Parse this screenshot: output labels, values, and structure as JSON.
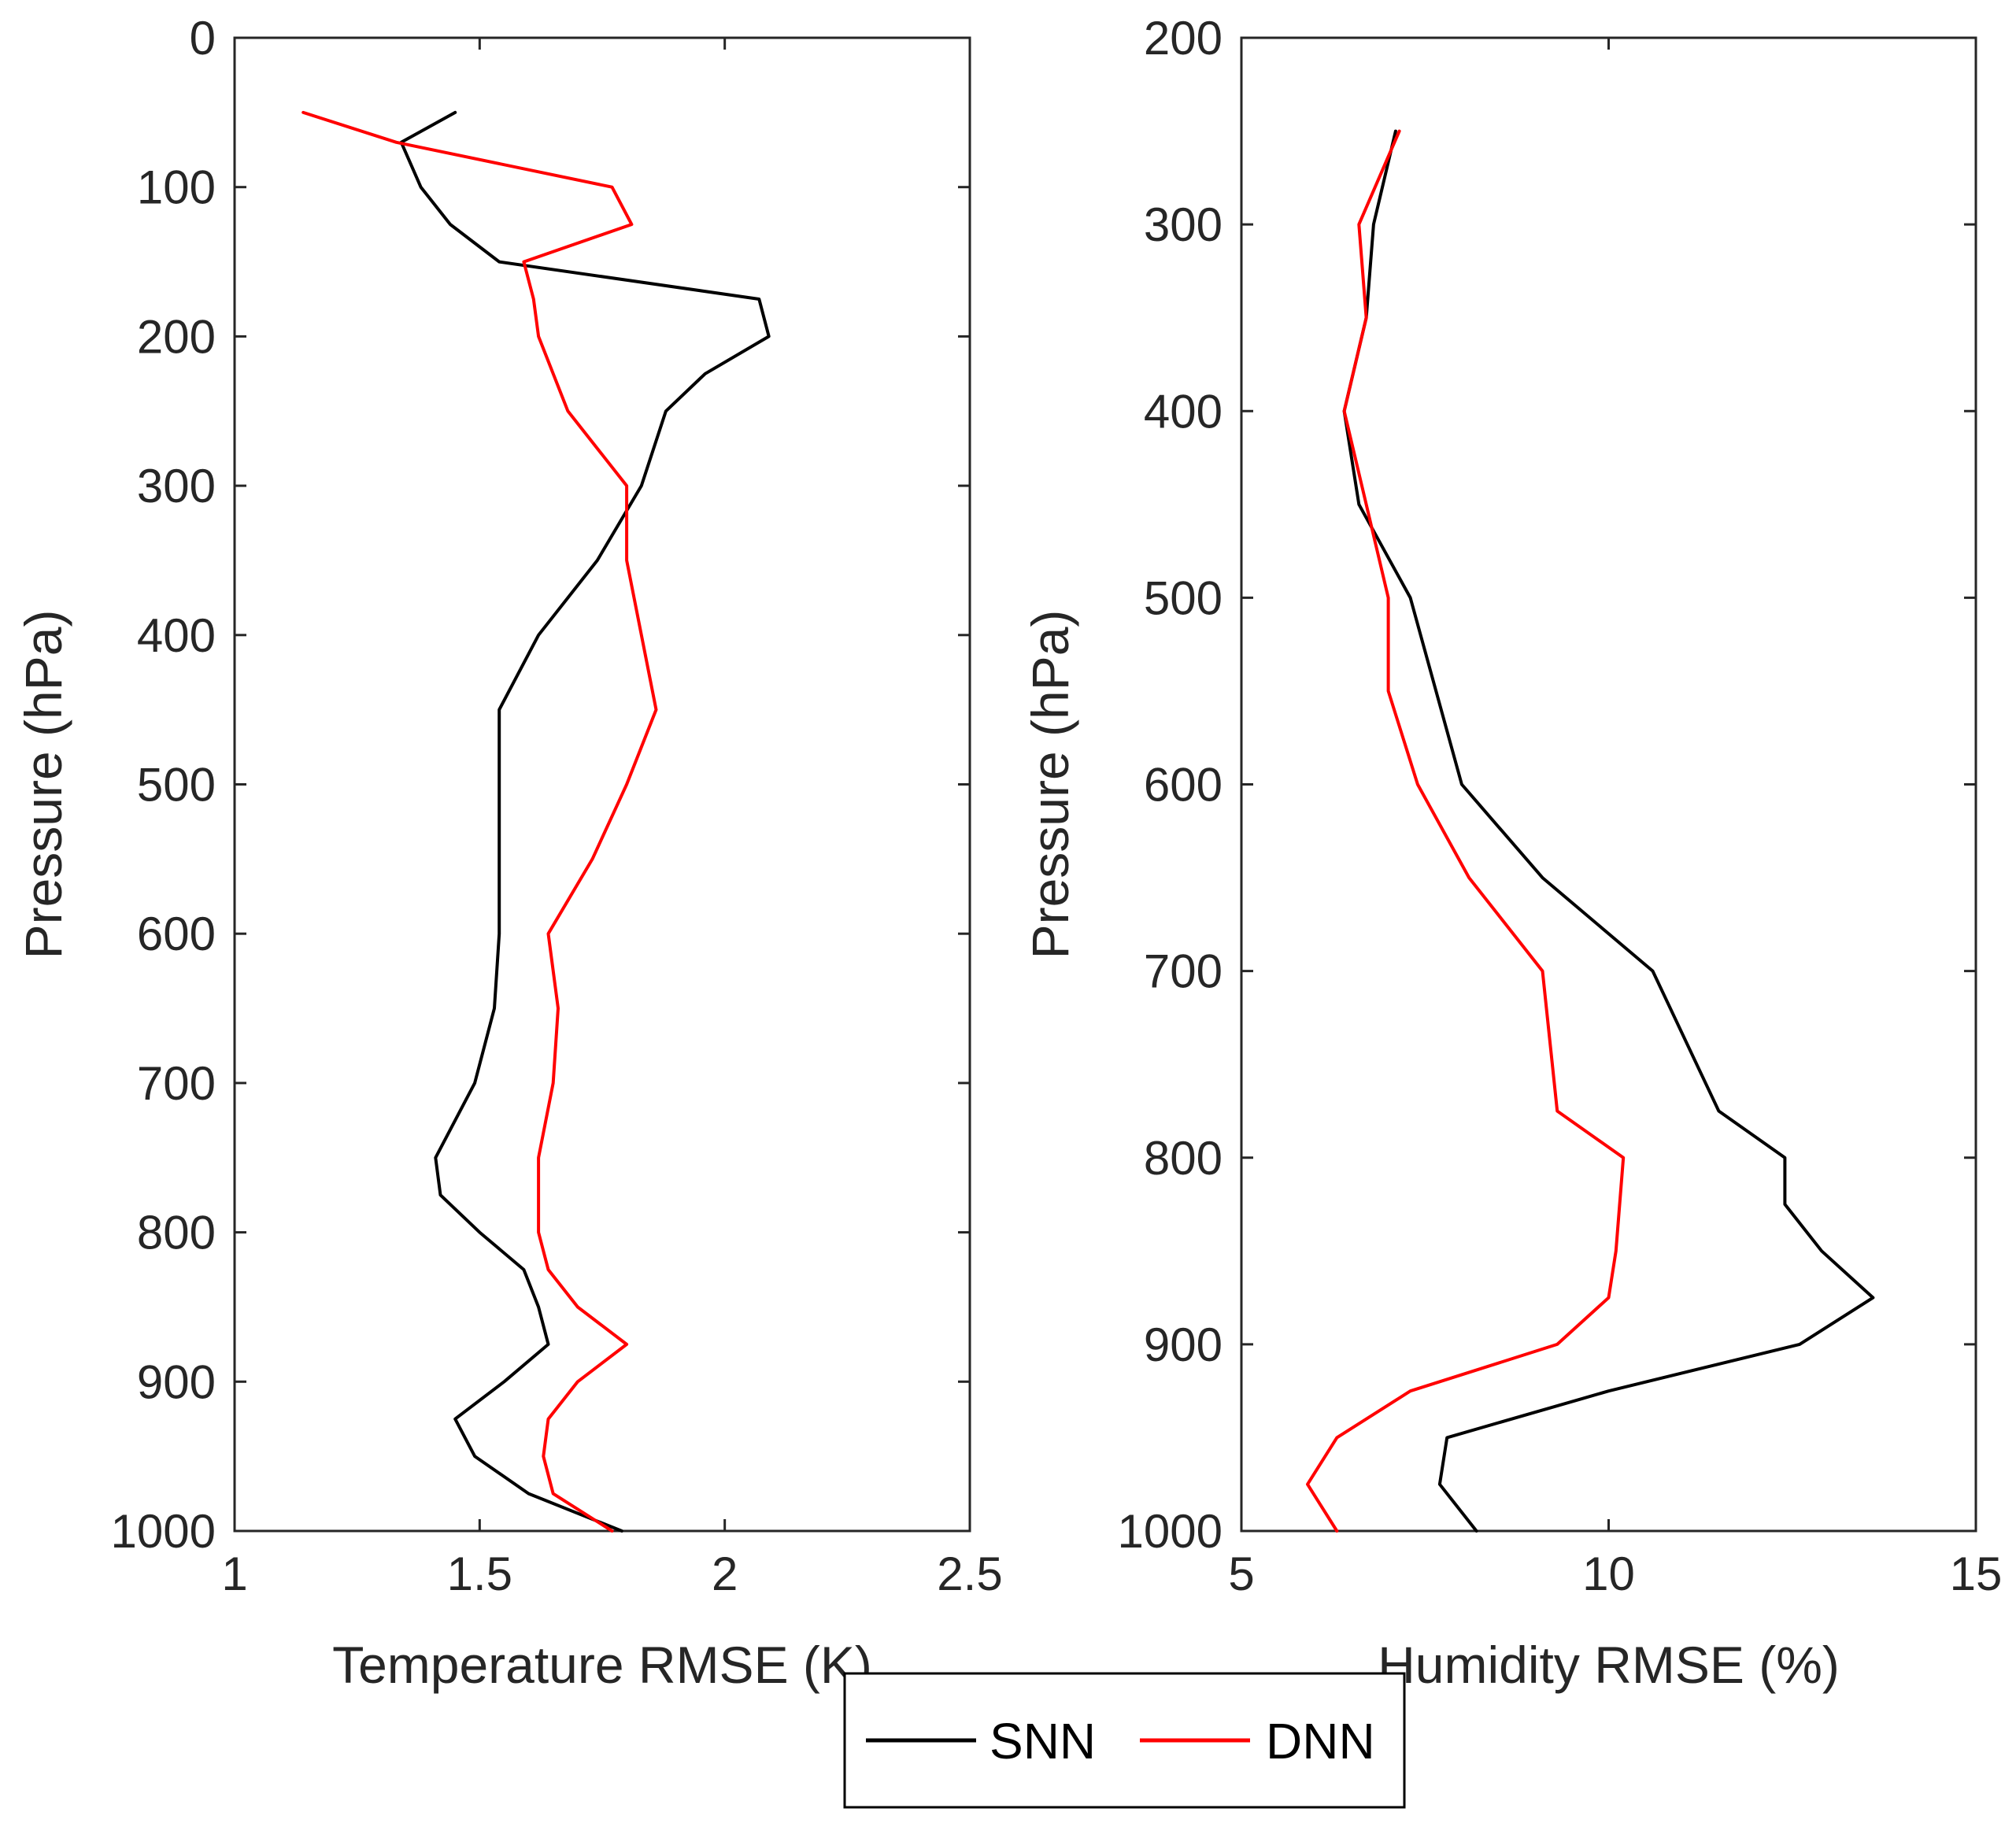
{
  "chart_data": [
    {
      "type": "line",
      "title": "",
      "xlabel": "Temperature RMSE (K)",
      "ylabel": "Pressure (hPa)",
      "xlim": [
        1,
        2.5
      ],
      "ylim": [
        0,
        1000
      ],
      "y_reversed": true,
      "grid": false,
      "xticks": [
        1,
        1.5,
        2,
        2.5
      ],
      "xtick_labels": [
        "1",
        "1.5",
        "2",
        "2.5"
      ],
      "yticks": [
        0,
        100,
        200,
        300,
        400,
        500,
        600,
        700,
        800,
        900,
        1000
      ],
      "ytick_labels": [
        "0",
        "100",
        "200",
        "300",
        "400",
        "500",
        "600",
        "700",
        "800",
        "900",
        "1000"
      ],
      "series": [
        {
          "name": "SNN",
          "color": "#000000",
          "points": [
            [
              1.45,
              50
            ],
            [
              1.34,
              70
            ],
            [
              1.38,
              100
            ],
            [
              1.44,
              125
            ],
            [
              1.54,
              150
            ],
            [
              2.07,
              175
            ],
            [
              2.09,
              200
            ],
            [
              1.96,
              225
            ],
            [
              1.88,
              250
            ],
            [
              1.83,
              300
            ],
            [
              1.74,
              350
            ],
            [
              1.62,
              400
            ],
            [
              1.54,
              450
            ],
            [
              1.54,
              500
            ],
            [
              1.54,
              550
            ],
            [
              1.54,
              600
            ],
            [
              1.53,
              650
            ],
            [
              1.49,
              700
            ],
            [
              1.41,
              750
            ],
            [
              1.42,
              775
            ],
            [
              1.5,
              800
            ],
            [
              1.59,
              825
            ],
            [
              1.62,
              850
            ],
            [
              1.64,
              875
            ],
            [
              1.55,
              900
            ],
            [
              1.45,
              925
            ],
            [
              1.49,
              950
            ],
            [
              1.6,
              975
            ],
            [
              1.79,
              1000
            ]
          ]
        },
        {
          "name": "DNN",
          "color": "#ff0000",
          "points": [
            [
              1.14,
              50
            ],
            [
              1.33,
              70
            ],
            [
              1.77,
              100
            ],
            [
              1.81,
              125
            ],
            [
              1.59,
              150
            ],
            [
              1.61,
              175
            ],
            [
              1.62,
              200
            ],
            [
              1.68,
              250
            ],
            [
              1.8,
              300
            ],
            [
              1.8,
              350
            ],
            [
              1.83,
              400
            ],
            [
              1.86,
              450
            ],
            [
              1.8,
              500
            ],
            [
              1.73,
              550
            ],
            [
              1.64,
              600
            ],
            [
              1.66,
              650
            ],
            [
              1.65,
              700
            ],
            [
              1.62,
              750
            ],
            [
              1.62,
              800
            ],
            [
              1.64,
              825
            ],
            [
              1.7,
              850
            ],
            [
              1.8,
              875
            ],
            [
              1.7,
              900
            ],
            [
              1.64,
              925
            ],
            [
              1.63,
              950
            ],
            [
              1.65,
              975
            ],
            [
              1.77,
              1000
            ]
          ]
        }
      ]
    },
    {
      "type": "line",
      "title": "",
      "xlabel": "Humidity RMSE (%)",
      "ylabel": "Pressure (hPa)",
      "xlim": [
        5,
        15
      ],
      "ylim": [
        200,
        1000
      ],
      "y_reversed": true,
      "grid": false,
      "xticks": [
        5,
        10,
        15
      ],
      "xtick_labels": [
        "5",
        "10",
        "15"
      ],
      "yticks": [
        200,
        300,
        400,
        500,
        600,
        700,
        800,
        900,
        1000
      ],
      "ytick_labels": [
        "200",
        "300",
        "400",
        "500",
        "600",
        "700",
        "800",
        "900",
        "1000"
      ],
      "series": [
        {
          "name": "SNN",
          "color": "#000000",
          "points": [
            [
              7.1,
              250
            ],
            [
              6.8,
              300
            ],
            [
              6.7,
              350
            ],
            [
              6.4,
              400
            ],
            [
              6.6,
              450
            ],
            [
              7.3,
              500
            ],
            [
              8.0,
              600
            ],
            [
              9.1,
              650
            ],
            [
              10.6,
              700
            ],
            [
              11.5,
              775
            ],
            [
              12.4,
              800
            ],
            [
              12.4,
              825
            ],
            [
              12.9,
              850
            ],
            [
              13.6,
              875
            ],
            [
              12.6,
              900
            ],
            [
              10.0,
              925
            ],
            [
              7.8,
              950
            ],
            [
              7.7,
              975
            ],
            [
              8.2,
              1000
            ]
          ]
        },
        {
          "name": "DNN",
          "color": "#ff0000",
          "points": [
            [
              7.15,
              250
            ],
            [
              6.6,
              300
            ],
            [
              6.7,
              350
            ],
            [
              6.4,
              400
            ],
            [
              6.7,
              450
            ],
            [
              7.0,
              500
            ],
            [
              7.0,
              550
            ],
            [
              7.4,
              600
            ],
            [
              8.1,
              650
            ],
            [
              9.1,
              700
            ],
            [
              9.3,
              775
            ],
            [
              10.2,
              800
            ],
            [
              10.1,
              850
            ],
            [
              10.0,
              875
            ],
            [
              9.3,
              900
            ],
            [
              7.3,
              925
            ],
            [
              6.3,
              950
            ],
            [
              5.9,
              975
            ],
            [
              6.3,
              1000
            ]
          ]
        }
      ]
    }
  ],
  "legend": {
    "placement": "bottom-center",
    "entries": [
      {
        "label": "SNN",
        "color": "#000000"
      },
      {
        "label": "DNN",
        "color": "#ff0000"
      }
    ]
  }
}
